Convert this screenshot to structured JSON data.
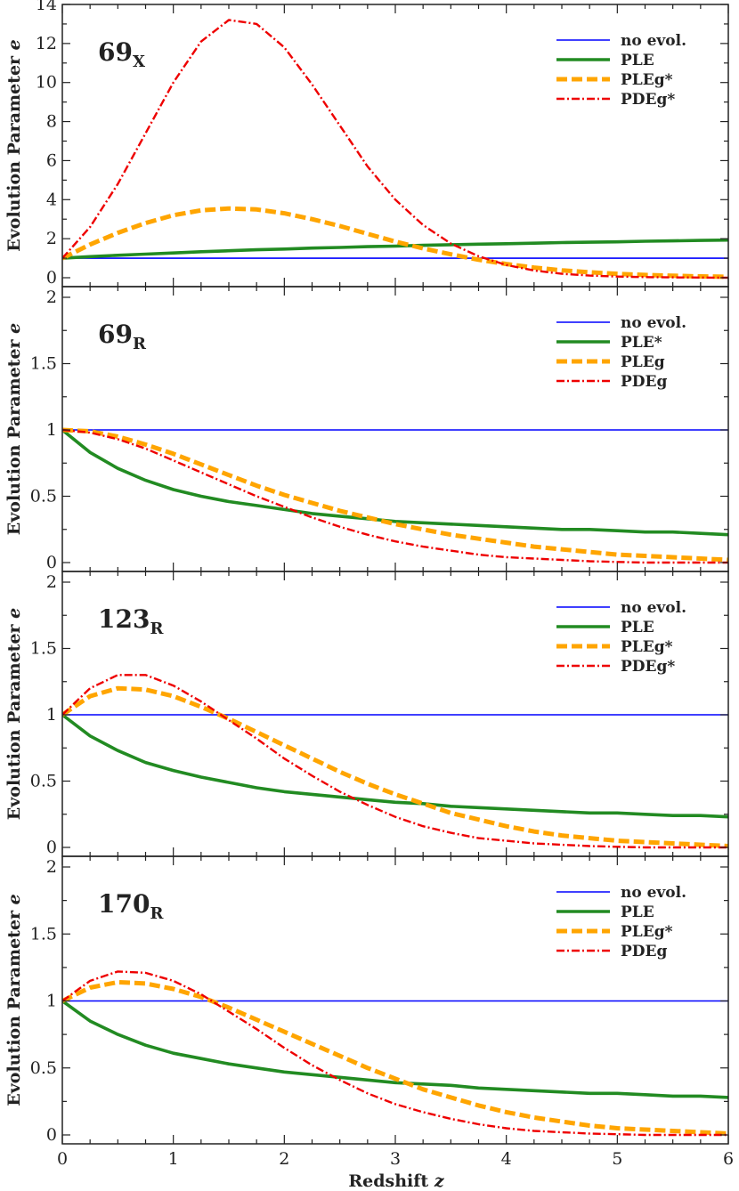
{
  "chart_data": {
    "type": "line",
    "xlabel": "Redshift",
    "xlabel_var": "z",
    "xlim": [
      0,
      6
    ],
    "x_ticks": [
      "0",
      "1",
      "2",
      "3",
      "4",
      "5",
      "6"
    ],
    "ylabel_shared": "Evolution Parameter",
    "ylabel_var": "e",
    "series_styles": {
      "no evol.": {
        "color": "#0000ff",
        "dash": "solid",
        "width": 1.6
      },
      "PLE": {
        "color": "#228b22",
        "dash": "solid",
        "width": 3.6
      },
      "PLE*": {
        "color": "#228b22",
        "dash": "solid",
        "width": 3.6
      },
      "PLEg": {
        "color": "#ffa500",
        "dash": "dashed",
        "width": 5
      },
      "PLEg*": {
        "color": "#ffa500",
        "dash": "dashed",
        "width": 5
      },
      "PDEg": {
        "color": "#ee0000",
        "dash": "dashdot",
        "width": 2.4
      },
      "PDEg*": {
        "color": "#ee0000",
        "dash": "dashdot",
        "width": 2.4
      }
    },
    "x": [
      0,
      0.25,
      0.5,
      0.75,
      1,
      1.25,
      1.5,
      1.75,
      2,
      2.25,
      2.5,
      2.75,
      3,
      3.25,
      3.5,
      3.75,
      4,
      4.25,
      4.5,
      4.75,
      5,
      5.25,
      5.5,
      5.75,
      6
    ],
    "panels": [
      {
        "label_main": "69",
        "label_sub": "X",
        "ylim": [
          0,
          14
        ],
        "y_ticks": [
          "0",
          "2",
          "4",
          "6",
          "8",
          "10",
          "12",
          "14"
        ],
        "legend": [
          "no evol.",
          "PLE",
          "PLEg*",
          "PDEg*"
        ],
        "series": [
          {
            "name": "no evol.",
            "values": [
              1,
              1,
              1,
              1,
              1,
              1,
              1,
              1,
              1,
              1,
              1,
              1,
              1,
              1,
              1,
              1,
              1,
              1,
              1,
              1,
              1,
              1,
              1,
              1,
              1
            ]
          },
          {
            "name": "PLE",
            "values": [
              1,
              1.08,
              1.15,
              1.21,
              1.27,
              1.33,
              1.38,
              1.43,
              1.47,
              1.52,
              1.55,
              1.59,
              1.62,
              1.66,
              1.69,
              1.72,
              1.74,
              1.77,
              1.8,
              1.82,
              1.84,
              1.87,
              1.89,
              1.91,
              1.93
            ]
          },
          {
            "name": "PLEg*",
            "values": [
              1,
              1.7,
              2.3,
              2.8,
              3.2,
              3.45,
              3.55,
              3.5,
              3.3,
              3.0,
              2.65,
              2.25,
              1.85,
              1.5,
              1.2,
              0.92,
              0.7,
              0.52,
              0.38,
              0.28,
              0.2,
              0.14,
              0.1,
              0.07,
              0.05
            ]
          },
          {
            "name": "PDEg*",
            "values": [
              1,
              2.6,
              4.8,
              7.4,
              10.0,
              12.1,
              13.2,
              13.0,
              11.8,
              9.9,
              7.8,
              5.7,
              4.0,
              2.7,
              1.75,
              1.1,
              0.65,
              0.37,
              0.2,
              0.11,
              0.06,
              0.03,
              0.02,
              0.01,
              0
            ]
          }
        ]
      },
      {
        "label_main": "69",
        "label_sub": "R",
        "ylim": [
          0,
          2
        ],
        "y_ticks": [
          "0",
          "0.5",
          "1",
          "1.5",
          "2"
        ],
        "legend": [
          "no evol.",
          "PLE*",
          "PLEg",
          "PDEg"
        ],
        "series": [
          {
            "name": "no evol.",
            "values": [
              1,
              1,
              1,
              1,
              1,
              1,
              1,
              1,
              1,
              1,
              1,
              1,
              1,
              1,
              1,
              1,
              1,
              1,
              1,
              1,
              1,
              1,
              1,
              1,
              1
            ]
          },
          {
            "name": "PLE*",
            "values": [
              1,
              0.83,
              0.71,
              0.62,
              0.55,
              0.5,
              0.46,
              0.43,
              0.4,
              0.37,
              0.35,
              0.33,
              0.31,
              0.3,
              0.29,
              0.28,
              0.27,
              0.26,
              0.25,
              0.25,
              0.24,
              0.23,
              0.23,
              0.22,
              0.21
            ]
          },
          {
            "name": "PLEg",
            "values": [
              1,
              0.99,
              0.95,
              0.89,
              0.82,
              0.74,
              0.66,
              0.58,
              0.51,
              0.45,
              0.39,
              0.34,
              0.29,
              0.25,
              0.21,
              0.18,
              0.15,
              0.12,
              0.1,
              0.08,
              0.06,
              0.05,
              0.04,
              0.03,
              0.02
            ]
          },
          {
            "name": "PDEg",
            "values": [
              1,
              0.98,
              0.93,
              0.86,
              0.77,
              0.68,
              0.59,
              0.5,
              0.42,
              0.34,
              0.27,
              0.21,
              0.16,
              0.12,
              0.09,
              0.06,
              0.04,
              0.03,
              0.02,
              0.01,
              0.005,
              0,
              0,
              0,
              0
            ]
          }
        ]
      },
      {
        "label_main": "123",
        "label_sub": "R",
        "ylim": [
          0,
          2
        ],
        "y_ticks": [
          "0",
          "0.5",
          "1",
          "1.5",
          "2"
        ],
        "legend": [
          "no evol.",
          "PLE",
          "PLEg*",
          "PDEg*"
        ],
        "series": [
          {
            "name": "no evol.",
            "values": [
              1,
              1,
              1,
              1,
              1,
              1,
              1,
              1,
              1,
              1,
              1,
              1,
              1,
              1,
              1,
              1,
              1,
              1,
              1,
              1,
              1,
              1,
              1,
              1,
              1
            ]
          },
          {
            "name": "PLE",
            "values": [
              1,
              0.84,
              0.73,
              0.64,
              0.58,
              0.53,
              0.49,
              0.45,
              0.42,
              0.4,
              0.38,
              0.36,
              0.34,
              0.33,
              0.31,
              0.3,
              0.29,
              0.28,
              0.27,
              0.26,
              0.26,
              0.25,
              0.24,
              0.24,
              0.23
            ]
          },
          {
            "name": "PLEg*",
            "values": [
              1,
              1.14,
              1.2,
              1.19,
              1.14,
              1.06,
              0.97,
              0.87,
              0.77,
              0.67,
              0.57,
              0.48,
              0.4,
              0.33,
              0.26,
              0.21,
              0.16,
              0.12,
              0.09,
              0.07,
              0.05,
              0.04,
              0.03,
              0.02,
              0.01
            ]
          },
          {
            "name": "PDEg*",
            "values": [
              1,
              1.2,
              1.3,
              1.3,
              1.22,
              1.1,
              0.96,
              0.82,
              0.67,
              0.54,
              0.42,
              0.32,
              0.23,
              0.16,
              0.11,
              0.07,
              0.05,
              0.03,
              0.02,
              0.01,
              0.005,
              0,
              0,
              0,
              0
            ]
          }
        ]
      },
      {
        "label_main": "170",
        "label_sub": "R",
        "ylim": [
          0,
          2
        ],
        "y_ticks": [
          "0",
          "0.5",
          "1",
          "1.5",
          "2"
        ],
        "legend": [
          "no evol.",
          "PLE",
          "PLEg*",
          "PDEg"
        ],
        "series": [
          {
            "name": "no evol.",
            "values": [
              1,
              1,
              1,
              1,
              1,
              1,
              1,
              1,
              1,
              1,
              1,
              1,
              1,
              1,
              1,
              1,
              1,
              1,
              1,
              1,
              1,
              1,
              1,
              1,
              1
            ]
          },
          {
            "name": "PLE",
            "values": [
              1,
              0.85,
              0.75,
              0.67,
              0.61,
              0.57,
              0.53,
              0.5,
              0.47,
              0.45,
              0.43,
              0.41,
              0.39,
              0.38,
              0.37,
              0.35,
              0.34,
              0.33,
              0.32,
              0.31,
              0.31,
              0.3,
              0.29,
              0.29,
              0.28
            ]
          },
          {
            "name": "PLEg*",
            "values": [
              1,
              1.1,
              1.14,
              1.13,
              1.09,
              1.03,
              0.95,
              0.86,
              0.77,
              0.68,
              0.59,
              0.5,
              0.42,
              0.34,
              0.28,
              0.22,
              0.17,
              0.13,
              0.1,
              0.07,
              0.05,
              0.04,
              0.03,
              0.02,
              0.01
            ]
          },
          {
            "name": "PDEg",
            "values": [
              1,
              1.15,
              1.22,
              1.21,
              1.15,
              1.05,
              0.92,
              0.79,
              0.65,
              0.52,
              0.41,
              0.31,
              0.23,
              0.17,
              0.12,
              0.08,
              0.05,
              0.03,
              0.02,
              0.01,
              0.005,
              0,
              0,
              0,
              0
            ]
          }
        ]
      }
    ]
  }
}
